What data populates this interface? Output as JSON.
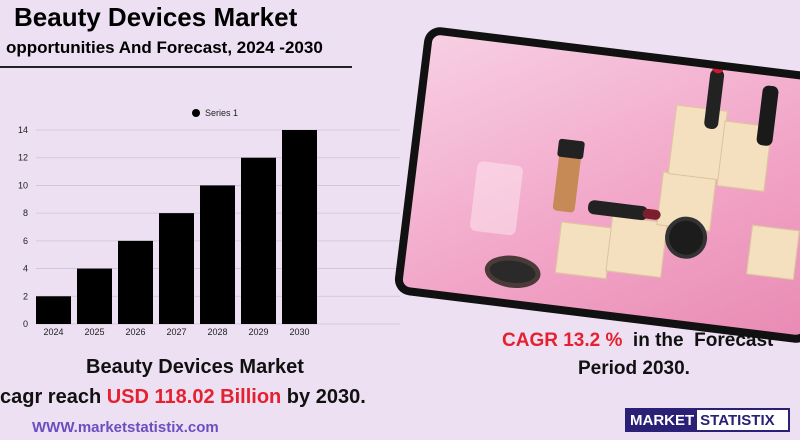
{
  "header": {
    "title": "Beauty Devices Market",
    "subtitle": "opportunities And Forecast, 2024 -2030"
  },
  "chart_data": {
    "type": "bar",
    "categories": [
      "2024",
      "2025",
      "2026",
      "2027",
      "2028",
      "2029",
      "2030"
    ],
    "series": [
      {
        "name": "Series 1",
        "values": [
          2,
          4,
          6,
          8,
          10,
          12,
          14
        ]
      }
    ],
    "ylim": [
      0,
      14
    ],
    "yticks": [
      0,
      2,
      4,
      6,
      8,
      10,
      12,
      14
    ],
    "grid": true,
    "legend": "top-center",
    "bar_color": "#000000"
  },
  "cagr": {
    "label_red": "CAGR 13.2 %",
    "label_rest": "  in the  Forecast",
    "line2": "Period  2030."
  },
  "summary": {
    "line1": "Beauty Devices Market",
    "line2_prefix": "cagr reach ",
    "line2_highlight": "USD 118.02 Billion",
    "line2_suffix": " by 2030."
  },
  "footer": {
    "website": "WWW.marketstatistix.com",
    "logo_part1": "MARKET",
    "logo_part2": "STATISTIX"
  },
  "colors": {
    "background": "#ece0f2",
    "highlight": "#e5202f",
    "brand": "#2a2075",
    "website": "#6b4fc0"
  }
}
